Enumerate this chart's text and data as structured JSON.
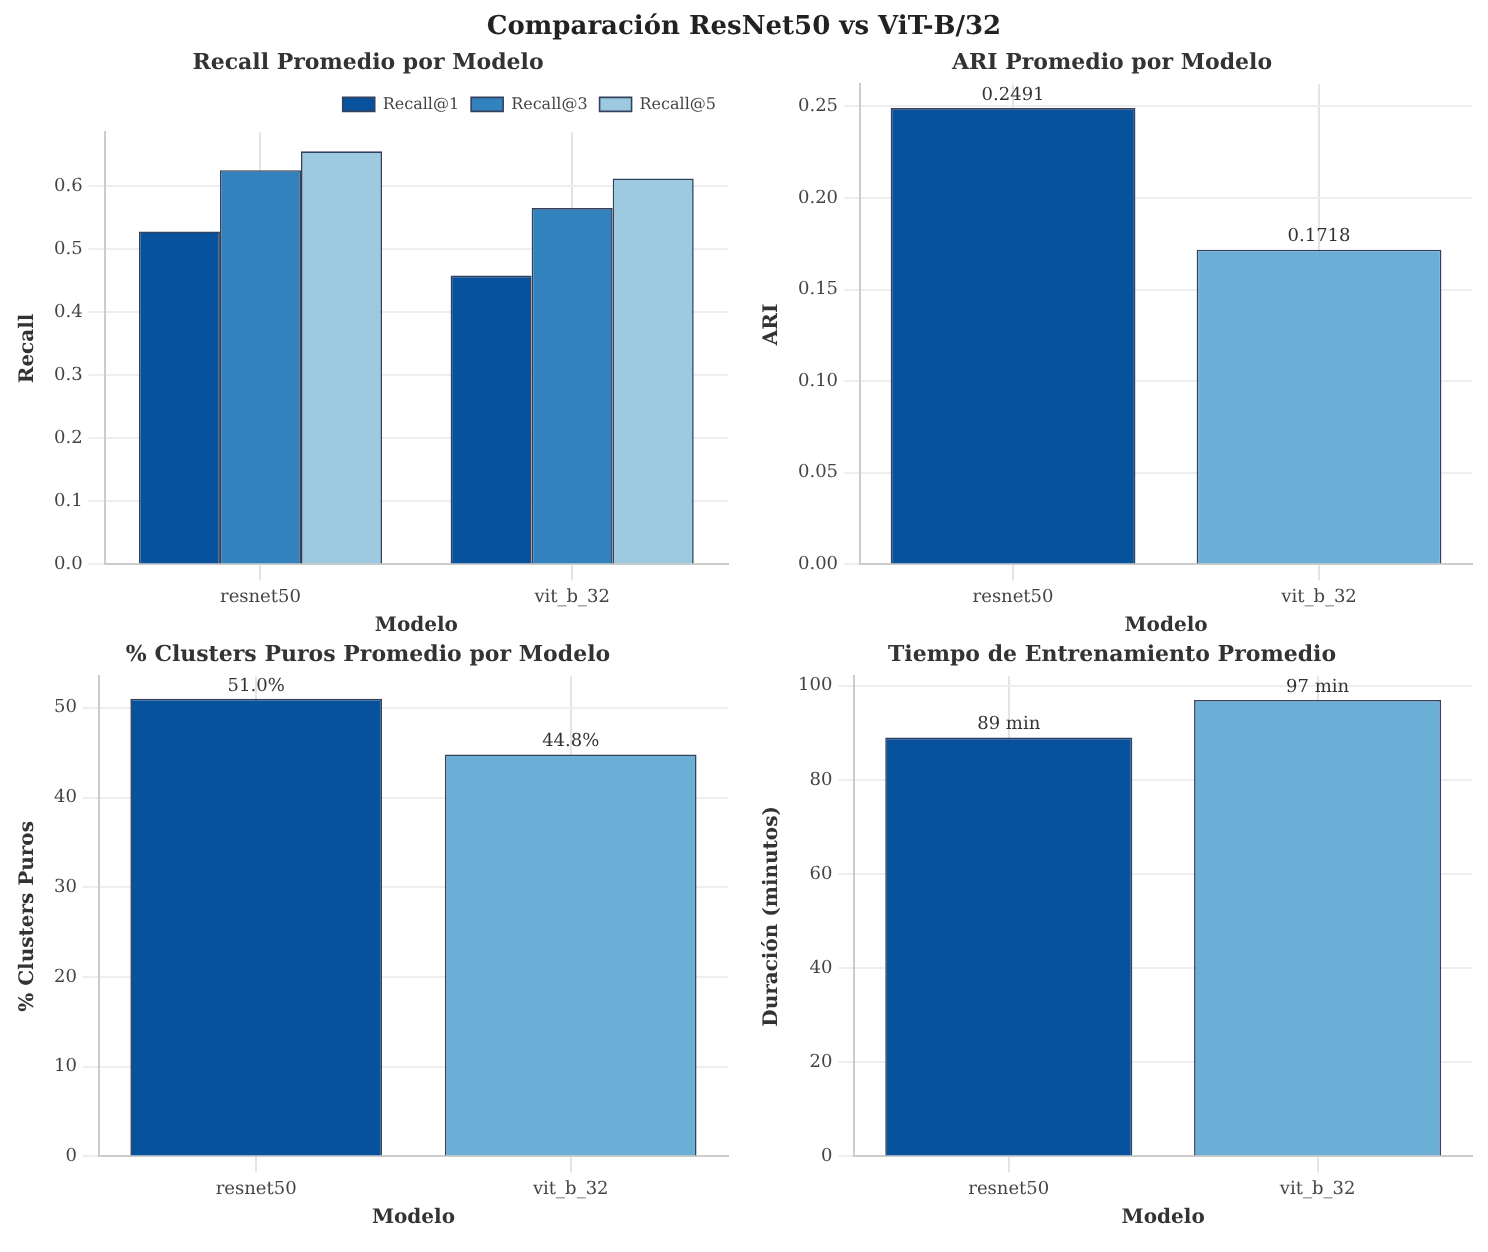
{
  "chart_data": [
    {
      "type": "other",
      "title": "Comparación ResNet50 vs ViT-B/32"
    },
    {
      "type": "bar",
      "title": "Recall Promedio por Modelo",
      "xlabel": "Modelo",
      "ylabel": "Recall",
      "categories": [
        "resnet50",
        "vit_b_32"
      ],
      "series": [
        {
          "name": "Recall@1",
          "color": "#08519c",
          "values": [
            0.528,
            0.458
          ]
        },
        {
          "name": "Recall@3",
          "color": "#3182bd",
          "values": [
            0.625,
            0.565
          ]
        },
        {
          "name": "Recall@5",
          "color": "#9ecae1",
          "values": [
            0.655,
            0.612
          ]
        }
      ],
      "ylim": [
        0,
        0.685
      ],
      "yticks": [
        {
          "value": 0,
          "label": "0.0"
        },
        0.1,
        0.2,
        0.3,
        0.4,
        0.5,
        0.6
      ],
      "grid": true,
      "legend": "top right"
    },
    {
      "type": "bar",
      "title": "ARI Promedio por Modelo",
      "xlabel": "Modelo",
      "ylabel": "ARI",
      "categories": [
        "resnet50",
        "vit_b_32"
      ],
      "values": [
        0.2491,
        0.1718
      ],
      "colors": [
        "#08519c",
        "#6baed6"
      ],
      "ylim": [
        0,
        0.262
      ],
      "yticks": [
        {
          "value": 0,
          "label": "0.00"
        },
        {
          "value": 0.05,
          "label": "0.05"
        },
        {
          "value": 0.1,
          "label": "0.10"
        },
        {
          "value": 0.15,
          "label": "0.15"
        },
        {
          "value": 0.2,
          "label": "0.20"
        },
        {
          "value": 0.25,
          "label": "0.25"
        }
      ],
      "grid": true,
      "data_labels": true
    },
    {
      "type": "bar",
      "title": "% Clusters Puros Promedio por Modelo",
      "xlabel": "Modelo",
      "ylabel": "% Clusters Puros",
      "categories": [
        "resnet50",
        "vit_b_32"
      ],
      "values": [
        51.0,
        44.8
      ],
      "colors": [
        "#08519c",
        "#6baed6"
      ],
      "value_labels": [
        "51.0%",
        "44.8%"
      ],
      "ylim": [
        0,
        53.5
      ],
      "yticks": [
        0,
        10,
        20,
        30,
        40,
        50
      ],
      "grid": true
    },
    {
      "type": "bar",
      "title": "Tiempo de Entrenamiento Promedio",
      "xlabel": "Modelo",
      "ylabel": "Duración (minutos)",
      "categories": [
        "resnet50",
        "vit_b_32"
      ],
      "values": [
        89,
        97
      ],
      "colors": [
        "#08519c",
        "#6baed6"
      ],
      "value_labels": [
        "89 min",
        "97 min"
      ],
      "ylim": [
        0,
        102
      ],
      "yticks": [
        0,
        20,
        40,
        60,
        80,
        100
      ],
      "grid": true
    }
  ]
}
